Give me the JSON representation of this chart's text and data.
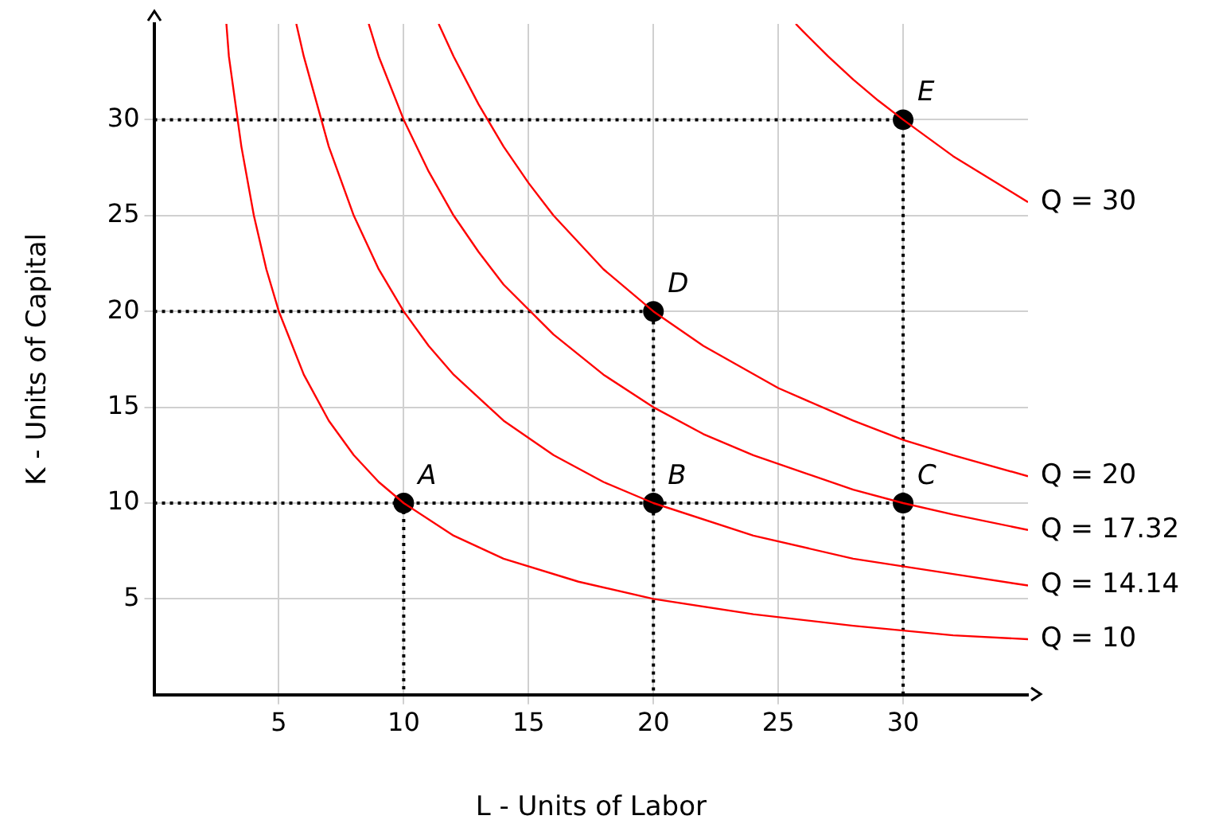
{
  "chart_data": {
    "type": "line",
    "xlabel": "L - Units of Labor",
    "ylabel": "K - Units of Capital",
    "xlim": [
      0,
      35
    ],
    "ylim": [
      0,
      35
    ],
    "xticks": [
      5,
      10,
      15,
      20,
      25,
      30
    ],
    "yticks": [
      5,
      10,
      15,
      20,
      25,
      30
    ],
    "grid": true,
    "legend": false,
    "series": [
      {
        "name": "Q = 10",
        "type": "line",
        "color": "#ff0000",
        "marker": "none",
        "line_style": "solid",
        "x": [
          2.9,
          3,
          3.5,
          4,
          4.5,
          5,
          6,
          7,
          8,
          9,
          10,
          12,
          14,
          17,
          20,
          24,
          28,
          32,
          35
        ],
        "values": [
          35,
          33.3,
          28.6,
          25,
          22.2,
          20,
          16.7,
          14.3,
          12.5,
          11.1,
          10,
          8.3,
          7.1,
          5.9,
          5,
          4.2,
          3.6,
          3.1,
          2.9
        ]
      },
      {
        "name": "Q = 14.14",
        "type": "line",
        "color": "#ff0000",
        "marker": "none",
        "line_style": "solid",
        "x": [
          5.7,
          6,
          7,
          8,
          9,
          10,
          11,
          12,
          14,
          16,
          18,
          20,
          24,
          28,
          32,
          35
        ],
        "values": [
          35,
          33.3,
          28.6,
          25,
          22.2,
          20,
          18.2,
          16.7,
          14.3,
          12.5,
          11.1,
          10,
          8.3,
          7.1,
          6.3,
          5.7
        ]
      },
      {
        "name": "Q = 17.32",
        "type": "line",
        "color": "#ff0000",
        "marker": "none",
        "line_style": "solid",
        "x": [
          8.6,
          9,
          10,
          11,
          12,
          13,
          14,
          16,
          18,
          20,
          22,
          24,
          28,
          30,
          32,
          35
        ],
        "values": [
          35,
          33.3,
          30,
          27.3,
          25,
          23.1,
          21.4,
          18.8,
          16.7,
          15,
          13.6,
          12.5,
          10.7,
          10,
          9.4,
          8.6
        ]
      },
      {
        "name": "Q = 20",
        "type": "line",
        "color": "#ff0000",
        "marker": "none",
        "line_style": "solid",
        "x": [
          11.4,
          12,
          13,
          14,
          15,
          16,
          18,
          20,
          22,
          25,
          28,
          30,
          32,
          35
        ],
        "values": [
          35,
          33.3,
          30.8,
          28.6,
          26.7,
          25,
          22.2,
          20,
          18.2,
          16,
          14.3,
          13.3,
          12.5,
          11.4
        ]
      },
      {
        "name": "Q = 30",
        "type": "line",
        "color": "#ff0000",
        "marker": "none",
        "line_style": "solid",
        "x": [
          25.7,
          26,
          27,
          28,
          29,
          30,
          32,
          35
        ],
        "values": [
          35,
          34.6,
          33.3,
          32.1,
          31,
          30,
          28.1,
          25.7
        ]
      },
      {
        "type": "line",
        "color": "#000000",
        "marker": "none",
        "line_style": "dotted",
        "x": [
          0,
          30,
          30
        ],
        "values": [
          30,
          30,
          0
        ]
      },
      {
        "type": "line",
        "color": "#000000",
        "marker": "none",
        "line_style": "dotted",
        "x": [
          0,
          20,
          20
        ],
        "values": [
          20,
          20,
          0
        ]
      },
      {
        "type": "line",
        "color": "#000000",
        "marker": "none",
        "line_style": "dotted",
        "x": [
          0,
          30
        ],
        "values": [
          10,
          10
        ]
      },
      {
        "type": "line",
        "color": "#000000",
        "marker": "none",
        "line_style": "dotted",
        "x": [
          10,
          10
        ],
        "values": [
          10,
          0
        ]
      },
      {
        "type": "scatter",
        "color": "#000000",
        "marker": "circle",
        "x": [
          10,
          20,
          30,
          20,
          30
        ],
        "values": [
          10,
          10,
          10,
          20,
          30
        ]
      }
    ],
    "annotations": [
      {
        "text": "A",
        "x": 10,
        "y": 10
      },
      {
        "text": "B",
        "x": 20,
        "y": 10
      },
      {
        "text": "C",
        "x": 30,
        "y": 10
      },
      {
        "text": "D",
        "x": 20,
        "y": 20
      },
      {
        "text": "E",
        "x": 30,
        "y": 30
      }
    ]
  }
}
